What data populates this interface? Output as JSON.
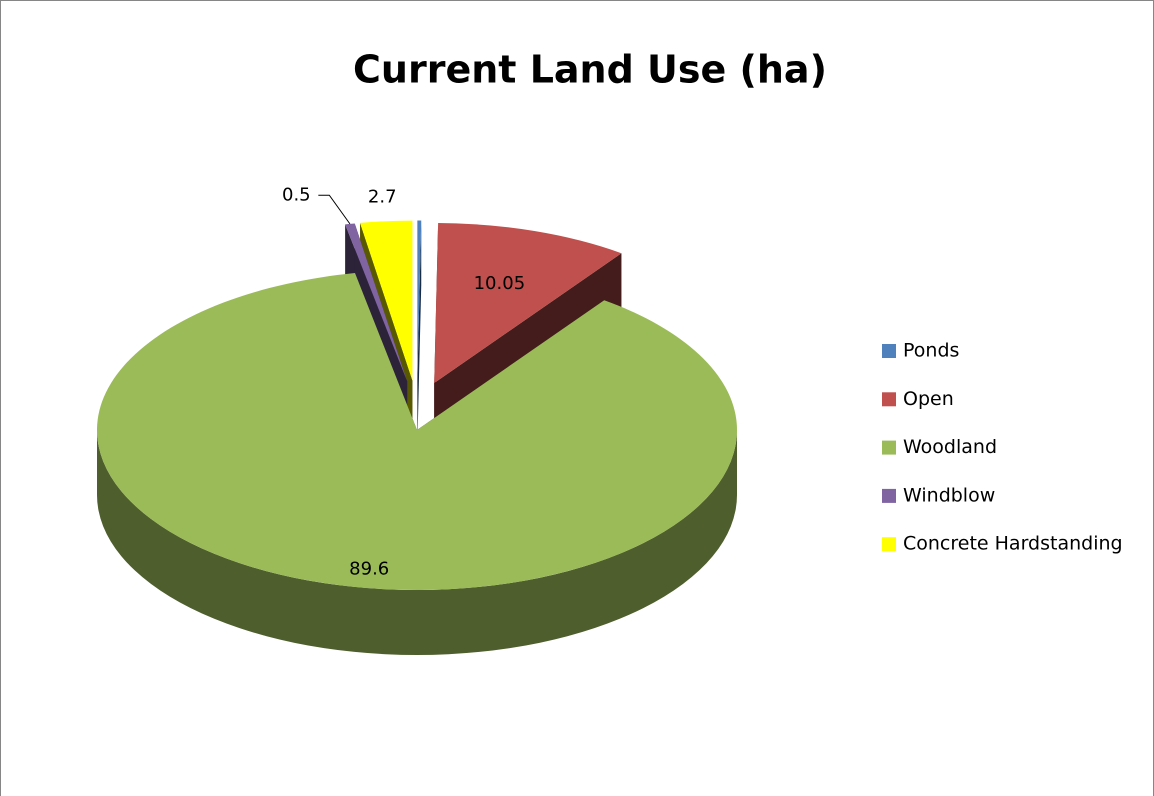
{
  "chart_data": {
    "type": "pie3d",
    "title": "Current Land Use (ha)",
    "categories": [
      "Ponds",
      "Open",
      "Woodland",
      "Windblow",
      "Concrete Hardstanding"
    ],
    "values": [
      0.2,
      10.05,
      89.6,
      0.5,
      2.7
    ],
    "colors": [
      "#4f81bd",
      "#c0504d",
      "#9bbb59",
      "#8064a2",
      "#ffff00"
    ],
    "data_labels": [
      false,
      true,
      true,
      true,
      true
    ],
    "legend": "right"
  }
}
